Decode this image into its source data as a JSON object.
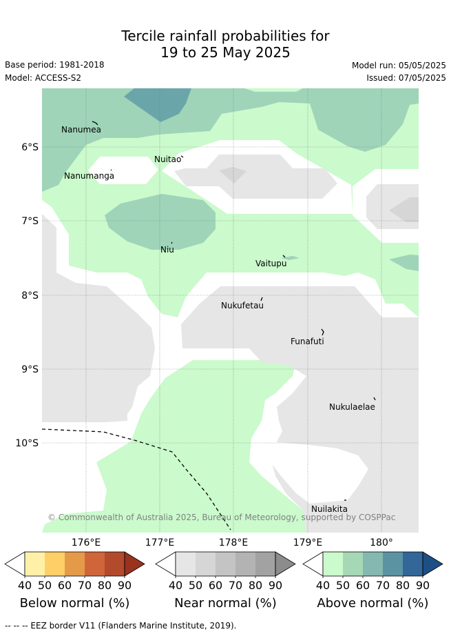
{
  "title_line1": "Tercile rainfall probabilities for",
  "title_line2": "19 to 25 May 2025",
  "base_period": "Base period: 1981-2018",
  "model": "Model: ACCESS-S2",
  "model_run": "Model run: 05/05/2025",
  "issued": "Issued: 07/05/2025",
  "lat_ticks": [
    "6°S",
    "7°S",
    "8°S",
    "9°S",
    "10°S"
  ],
  "lon_ticks": [
    "176°E",
    "177°E",
    "178°E",
    "179°E",
    "180°"
  ],
  "places": {
    "nanumea": "Nanumea",
    "nuitao": "Nuitao",
    "nanumanga": "Nanumanga",
    "niu": "Niu",
    "vaitupu": "Vaitupu",
    "nukufetau": "Nukufetau",
    "funafuti": "Funafuti",
    "nukulaelae": "Nukulaelae",
    "nuilakita": "Nuilakita"
  },
  "copyright": "© Commonwealth of Australia 2025, Bureau of Meteorology, supported by COSPPac",
  "legends": {
    "below": {
      "title": "Below normal (%)",
      "ticks": [
        "40",
        "50",
        "60",
        "70",
        "80",
        "90"
      ],
      "colors": [
        "#fff0a8",
        "#fdcf66",
        "#e59a4a",
        "#d0653a",
        "#b34a2c",
        "#9a3220"
      ]
    },
    "near": {
      "title": "Near normal (%)",
      "ticks": [
        "40",
        "50",
        "60",
        "70",
        "80",
        "90"
      ],
      "colors": [
        "#e6e6e6",
        "#d6d6d6",
        "#c4c4c4",
        "#b3b3b3",
        "#a2a2a2",
        "#8c8c8c"
      ]
    },
    "above": {
      "title": "Above normal (%)",
      "ticks": [
        "40",
        "50",
        "60",
        "70",
        "80",
        "90"
      ],
      "colors": [
        "#cbfacc",
        "#a6d8b5",
        "#85b8b0",
        "#5b93a3",
        "#336699",
        "#1c4f85"
      ]
    }
  },
  "eez_note": "--  --  -- EEZ border V11 (Flanders Marine Institute, 2019).",
  "colors": {
    "near40": "#e6e6e6",
    "near50": "#d6d6d6",
    "above40": "#cbfacc",
    "above50": "#9fd4b9",
    "above60": "#6aa6a9"
  }
}
